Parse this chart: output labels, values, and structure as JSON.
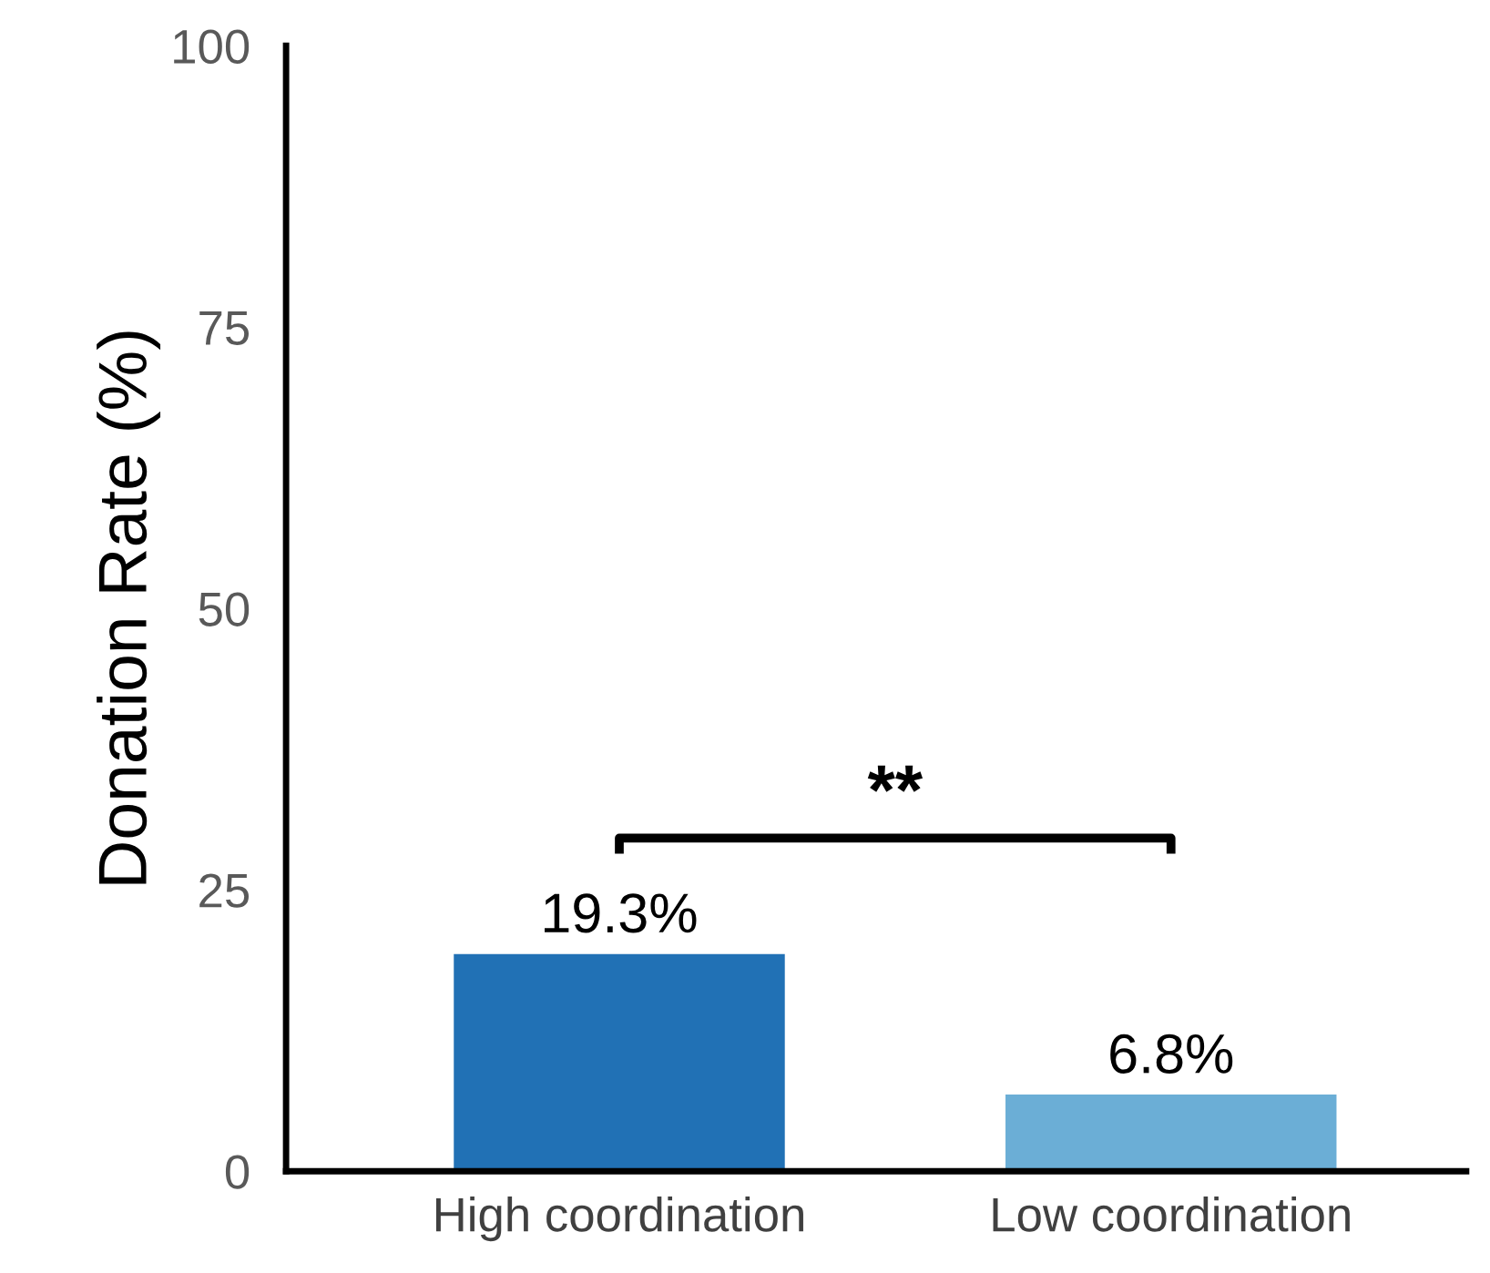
{
  "chart_data": {
    "type": "bar",
    "ylabel": "Donation Rate (%)",
    "categories": [
      "High coordination",
      "Low coordination"
    ],
    "values": [
      19.3,
      6.8
    ],
    "colors": [
      "#2171b5",
      "#6baed6"
    ],
    "value_labels": [
      "19.3%",
      "6.8%"
    ],
    "ylim": [
      0,
      100
    ],
    "yticks": [
      0,
      25,
      50,
      75,
      100
    ],
    "grid": false,
    "annotations": [
      "**"
    ]
  }
}
